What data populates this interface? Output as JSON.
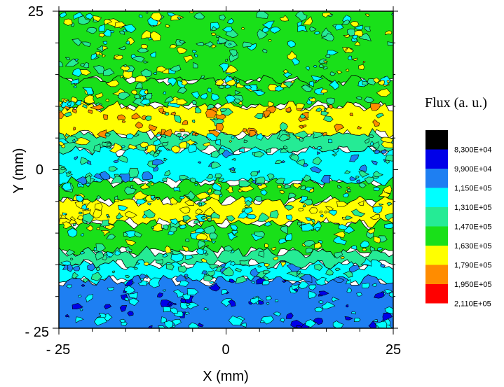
{
  "chart_data": {
    "type": "heatmap",
    "subtype": "filled-contour",
    "xlabel": "X (mm)",
    "ylabel": "Y (mm)",
    "xlim": [
      -25,
      25
    ],
    "ylim": [
      -25,
      25
    ],
    "x_ticks": [
      "- 25",
      "0",
      "25"
    ],
    "y_ticks": [
      "25",
      "0",
      "- 25"
    ],
    "grid": false,
    "legend": {
      "title": "Flux (a. u.)",
      "placement": "right",
      "levels": [
        "8,300E+04",
        "9,900E+04",
        "1,150E+05",
        "1,310E+05",
        "1,470E+05",
        "1,630E+05",
        "1,790E+05",
        "1,950E+05",
        "2,110E+05"
      ],
      "colors": [
        "#000000",
        "#0000e8",
        "#1e7ff2",
        "#00ffff",
        "#25eb95",
        "#19e019",
        "#ffff00",
        "#ff8c00",
        "#ff0000"
      ]
    },
    "bands": [
      {
        "y_from": 25,
        "y_to": 14,
        "color": "#19e019"
      },
      {
        "y_from": 14,
        "y_to": 10,
        "color": "#19e019"
      },
      {
        "y_from": 10,
        "y_to": 5.5,
        "color": "#ffff00"
      },
      {
        "y_from": 5.5,
        "y_to": 3,
        "color": "#25eb95"
      },
      {
        "y_from": 3,
        "y_to": -2,
        "color": "#00ffff"
      },
      {
        "y_from": -2,
        "y_to": -5,
        "color": "#19e019"
      },
      {
        "y_from": -5,
        "y_to": -8.5,
        "color": "#ffff00"
      },
      {
        "y_from": -8.5,
        "y_to": -13,
        "color": "#19e019"
      },
      {
        "y_from": -13,
        "y_to": -15,
        "color": "#25eb95"
      },
      {
        "y_from": -15,
        "y_to": -17.5,
        "color": "#00ffff"
      },
      {
        "y_from": -17.5,
        "y_to": -25,
        "color": "#1e7ff2"
      }
    ],
    "patch_colors": {
      "green": "#25eb95",
      "yellow": "#ffff00",
      "orange": "#ff8c00",
      "cyan": "#00ffff",
      "darkblue": "#0000e8",
      "blue": "#1e7ff2"
    }
  }
}
